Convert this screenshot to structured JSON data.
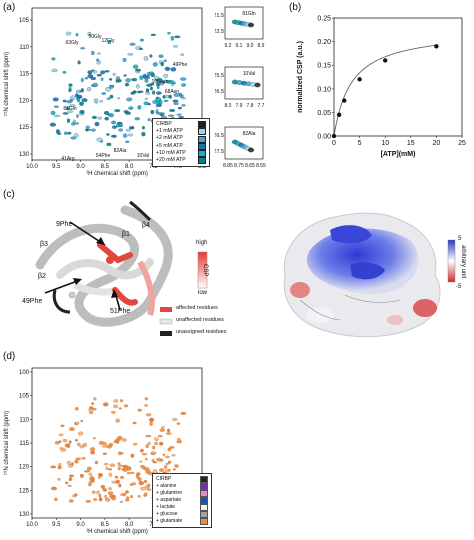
{
  "panels": {
    "a": {
      "letter": "(a)",
      "xlabel": "¹H chemical shift  (ppm)",
      "ylabel": "¹⁵N chemical shift  (ppm)",
      "xticks": [
        "10.0",
        "9.5",
        "9.0",
        "8.5",
        "8.0",
        "7.5",
        "7.0",
        "6.5"
      ],
      "yticks": [
        "105",
        "110",
        "115",
        "120",
        "125",
        "130"
      ],
      "peak_labels": [
        "50Gly",
        "63Gly",
        "12Gly",
        "49Phe",
        "68Asn",
        "81Gln",
        "41Arg",
        "54Phe",
        "82Ala",
        "10Val",
        "108Asn"
      ],
      "legend": [
        {
          "label": "CIRBP",
          "color": "#222222"
        },
        {
          "label": "+1 mM ATP",
          "color": "#9fd3ee"
        },
        {
          "label": "+2 mM ATP",
          "color": "#4aa3d6"
        },
        {
          "label": "+5 mM ATP",
          "color": "#1b6fb3"
        },
        {
          "label": "+10 mM ATP",
          "color": "#17b0c9"
        },
        {
          "label": "+20 mM ATP",
          "color": "#0b7f8f"
        }
      ],
      "zoom_panels": [
        {
          "label": "81Gln",
          "yticks": [
            "121.5",
            "122.5"
          ],
          "xticks": [
            "9.2",
            "9.1",
            "9.0",
            "8.9"
          ]
        },
        {
          "label": "10Val",
          "yticks": [
            "125.5",
            "126.5"
          ],
          "xticks": [
            "8.0",
            "7.9",
            "7.8",
            "7.7"
          ]
        },
        {
          "label": "82Ala",
          "yticks": [
            "126.5",
            "127.5"
          ],
          "xticks": [
            "8.85",
            "8.75",
            "8.65",
            "8.55"
          ]
        }
      ]
    },
    "b": {
      "letter": "(b)",
      "chart_data": {
        "type": "scatter",
        "x": [
          0,
          1,
          2,
          5,
          10,
          20
        ],
        "y": [
          0.0,
          0.045,
          0.075,
          0.12,
          0.16,
          0.19
        ],
        "fit": "saturation curve",
        "xlabel": "[ATP](mM)",
        "ylabel": "normalized CSP (a.u.)",
        "xlim": [
          0,
          25
        ],
        "ylim": [
          0,
          0.25
        ],
        "xticks": [
          "0",
          "5",
          "10",
          "15",
          "20",
          "25"
        ],
        "yticks": [
          "0.00",
          "0.05",
          "0.10",
          "0.15",
          "0.20",
          "0.25"
        ]
      }
    },
    "c": {
      "letter": "(c)",
      "structure_labels": [
        "9Phe",
        "β1",
        "β4",
        "β3",
        "β2",
        "49Phe",
        "51Phe"
      ],
      "colorbar": {
        "high": "high",
        "low": "low",
        "title": "CSP"
      },
      "legend": [
        {
          "label": "affected residues",
          "color": "#e4453d"
        },
        {
          "label": "unaffected residues",
          "color": "#e6e6e6"
        },
        {
          "label": "unassigned residues",
          "color": "#222222"
        }
      ],
      "surface_colorbar": {
        "max": "5",
        "min": "-5",
        "title": "arbitrary unit"
      }
    },
    "d": {
      "letter": "(d)",
      "xlabel": "¹H chemical shift  (ppm)",
      "ylabel": "¹⁵N chemical shift  (ppm)",
      "xticks": [
        "10.0",
        "9.5",
        "9.0",
        "8.5",
        "8.0",
        "7.5",
        "7.0",
        "6.5"
      ],
      "yticks": [
        "100",
        "105",
        "110",
        "115",
        "120",
        "125",
        "130"
      ],
      "legend": [
        {
          "label": "CIRBP",
          "color": "#222222"
        },
        {
          "label": "+ alanine",
          "color": "#7b2aa6"
        },
        {
          "label": "+ glutamine",
          "color": "#e98ad0"
        },
        {
          "label": "+ aspartate",
          "color": "#1f4fa6"
        },
        {
          "label": "+ lactate",
          "color": "#f2f2f2"
        },
        {
          "label": "+ glucose",
          "color": "#a3a3a3"
        },
        {
          "label": "+ glutamate",
          "color": "#f28c3a"
        }
      ]
    }
  }
}
